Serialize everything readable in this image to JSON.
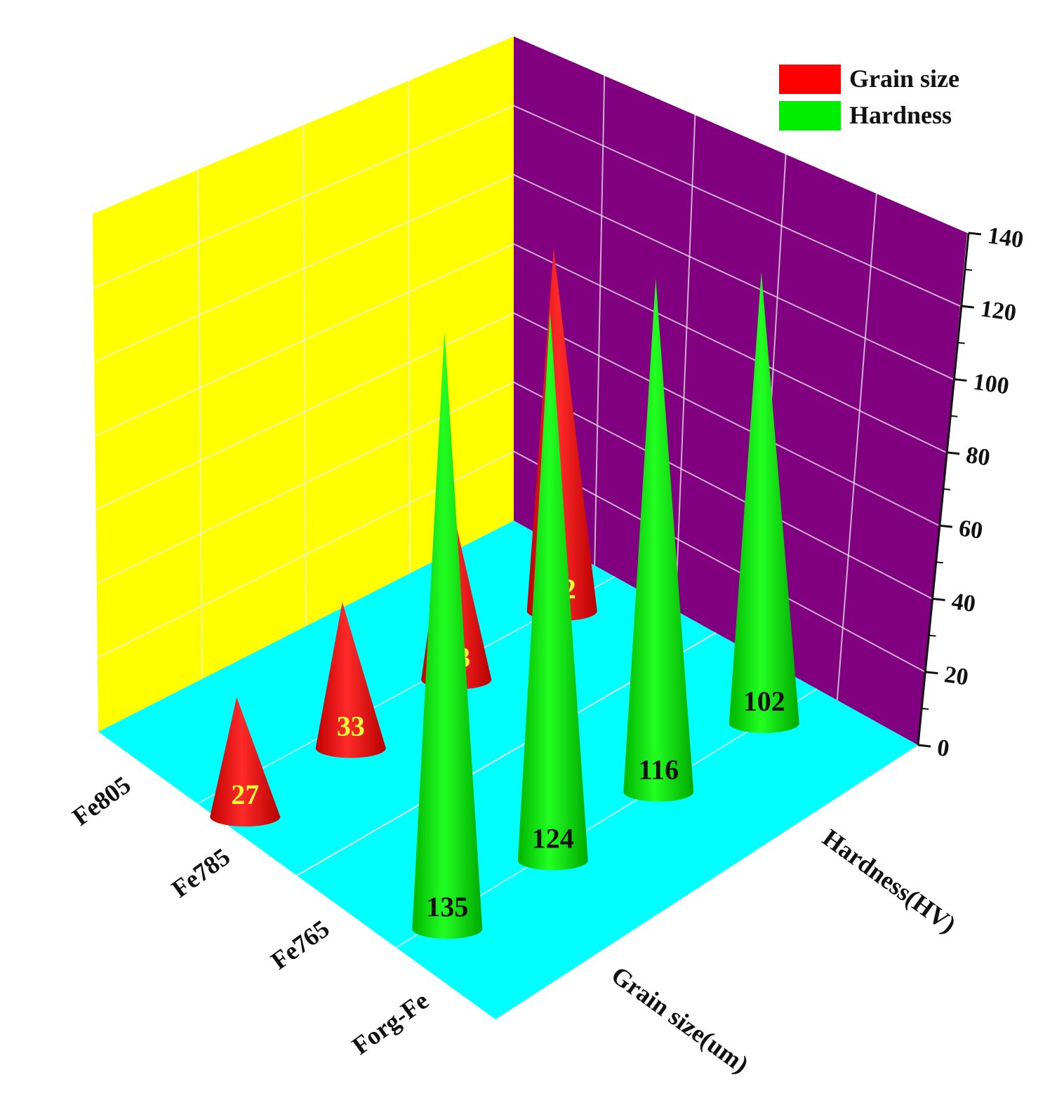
{
  "chart_data": {
    "type": "bar",
    "style": "3d-cone",
    "categories": [
      "Fe805",
      "Fe785",
      "Fe765",
      "Forg-Fe"
    ],
    "series": [
      {
        "name": "Grain size",
        "axis_label": "Grain size(um)",
        "color": "#ff0000",
        "label_color": "#ffff33",
        "values": [
          82,
          43,
          33,
          27
        ]
      },
      {
        "name": "Hardness",
        "axis_label": "Hardness(HV)",
        "color": "#00ee00",
        "label_color": "#111111",
        "values": [
          102,
          116,
          124,
          135
        ]
      }
    ],
    "zlim": [
      0,
      140
    ],
    "zticks": [
      0,
      20,
      40,
      60,
      80,
      100,
      120,
      140
    ],
    "grid": true,
    "legend_position": "top-right",
    "wall_colors": {
      "left": "#ffff00",
      "right": "#800080",
      "floor": "#00ffff"
    }
  }
}
